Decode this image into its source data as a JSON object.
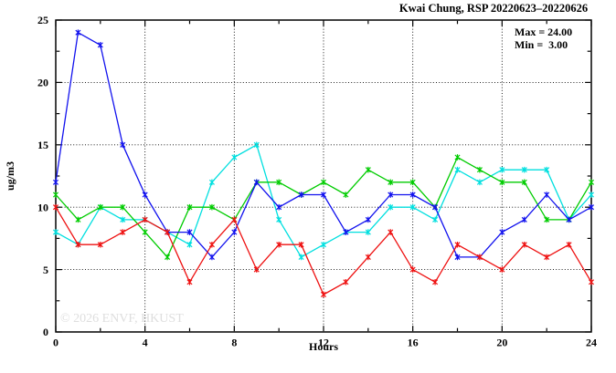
{
  "title": "Kwai Chung, RSP 20220623–20220626",
  "watermark": "© 2026 ENVF, HKUST",
  "annotations": {
    "max_label": "Max = 24.00",
    "min_label": "Min =  3.00"
  },
  "chart_data": {
    "type": "line",
    "title": "Kwai Chung, RSP 20220623–20220626",
    "xlabel": "Hours",
    "ylabel": "ug/m3",
    "xlim": [
      0,
      24
    ],
    "ylim": [
      0,
      25
    ],
    "x_major_ticks": [
      0,
      4,
      8,
      12,
      16,
      20,
      24
    ],
    "x_minor_step": 2,
    "y_major_ticks": [
      0,
      5,
      10,
      15,
      20,
      25
    ],
    "y_minor_step": 2.5,
    "grid": true,
    "grid_x": [
      4,
      8,
      12,
      16,
      20
    ],
    "grid_y": [
      5,
      10,
      15,
      20
    ],
    "legend_position": "none",
    "stats": {
      "max": 24.0,
      "min": 3.0
    },
    "hours": [
      0,
      1,
      2,
      3,
      4,
      5,
      6,
      7,
      8,
      9,
      10,
      11,
      12,
      13,
      14,
      15,
      16,
      17,
      18,
      19,
      20,
      21,
      22,
      23,
      24
    ],
    "series": [
      {
        "name": "day-cyan",
        "color": "#00dfdf",
        "values": [
          8,
          7,
          10,
          9,
          9,
          8,
          7,
          12,
          14,
          15,
          9,
          6,
          7,
          8,
          8,
          10,
          10,
          9,
          13,
          12,
          13,
          13,
          13,
          9,
          11
        ]
      },
      {
        "name": "day-green",
        "color": "#00cc00",
        "values": [
          11,
          9,
          10,
          10,
          8,
          6,
          10,
          10,
          9,
          12,
          12,
          11,
          12,
          11,
          13,
          12,
          12,
          10,
          14,
          13,
          12,
          12,
          9,
          9,
          12
        ]
      },
      {
        "name": "day-blue",
        "color": "#1111ee",
        "values": [
          12,
          24,
          23,
          15,
          11,
          8,
          8,
          6,
          8,
          12,
          10,
          11,
          11,
          8,
          9,
          11,
          11,
          10,
          6,
          6,
          8,
          9,
          11,
          9,
          10
        ]
      },
      {
        "name": "day-red",
        "color": "#ee1111",
        "values": [
          10,
          7,
          7,
          8,
          9,
          8,
          4,
          7,
          9,
          5,
          7,
          7,
          3,
          4,
          6,
          8,
          5,
          4,
          7,
          6,
          5,
          7,
          6,
          7,
          4
        ]
      }
    ]
  }
}
